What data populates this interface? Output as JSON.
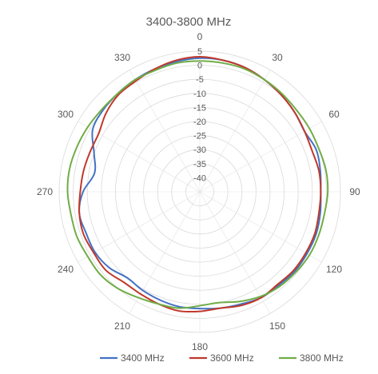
{
  "chart_data": {
    "type": "line",
    "polar": true,
    "title": "3400-3800 MHz",
    "angle_ticks": [
      0,
      30,
      60,
      90,
      120,
      150,
      180,
      210,
      240,
      270,
      300,
      330
    ],
    "angle_tick_labels": [
      "0",
      "30",
      "60",
      "90",
      "120",
      "150",
      "180",
      "210",
      "240",
      "270",
      "300",
      "330"
    ],
    "radial_ticks": [
      5,
      0,
      -5,
      -10,
      -15,
      -20,
      -25,
      -30,
      -35,
      -40
    ],
    "radial_tick_labels": [
      "5",
      "0",
      "-5",
      "-10",
      "-15",
      "-20",
      "-25",
      "-30",
      "-35",
      "-40"
    ],
    "rlim": [
      -45,
      5
    ],
    "grid": true,
    "legend_position": "bottom",
    "angles": [
      0,
      10,
      20,
      30,
      40,
      50,
      60,
      70,
      80,
      90,
      100,
      110,
      120,
      130,
      140,
      150,
      160,
      170,
      180,
      190,
      200,
      210,
      220,
      230,
      240,
      250,
      260,
      270,
      280,
      290,
      300,
      310,
      320,
      330,
      340,
      350
    ],
    "series": [
      {
        "name": "3400 MHz",
        "color": "#4472c4",
        "values": [
          2.5,
          2.5,
          2.0,
          1.0,
          0.0,
          -1.0,
          -2.0,
          -1.0,
          -1.5,
          -2.0,
          -1.5,
          -1.0,
          -1.0,
          -1.0,
          -1.5,
          -1.5,
          -2.5,
          -3.0,
          -3.5,
          -3.5,
          -4.0,
          -4.5,
          -5.0,
          -3.0,
          -2.0,
          -2.0,
          -1.5,
          -3.5,
          -7.0,
          -5.0,
          -1.0,
          0.0,
          0.5,
          1.0,
          1.5,
          2.0
        ]
      },
      {
        "name": "3600 MHz",
        "color": "#c0392b",
        "values": [
          3.0,
          2.5,
          2.0,
          1.0,
          0.0,
          -1.0,
          -2.0,
          -2.5,
          -2.0,
          -2.0,
          -2.0,
          -1.5,
          -1.5,
          -1.5,
          -2.0,
          -1.5,
          -2.0,
          -3.0,
          -2.5,
          -2.0,
          -2.5,
          -3.0,
          -3.0,
          -1.5,
          -1.5,
          -1.0,
          -1.5,
          -2.5,
          -3.0,
          -3.5,
          -3.5,
          -1.5,
          0.0,
          0.5,
          1.5,
          2.5
        ]
      },
      {
        "name": "3800 MHz",
        "color": "#70ad47",
        "values": [
          1.5,
          1.5,
          1.5,
          1.0,
          0.5,
          0.0,
          0.0,
          0.0,
          0.5,
          0.5,
          0.0,
          0.0,
          0.0,
          -0.5,
          -1.0,
          -2.0,
          -3.5,
          -5.0,
          -4.5,
          -3.0,
          -2.5,
          -1.5,
          0.0,
          1.0,
          1.0,
          1.5,
          1.5,
          2.0,
          2.0,
          1.5,
          1.0,
          0.5,
          0.5,
          1.0,
          1.0,
          1.5
        ]
      }
    ]
  }
}
